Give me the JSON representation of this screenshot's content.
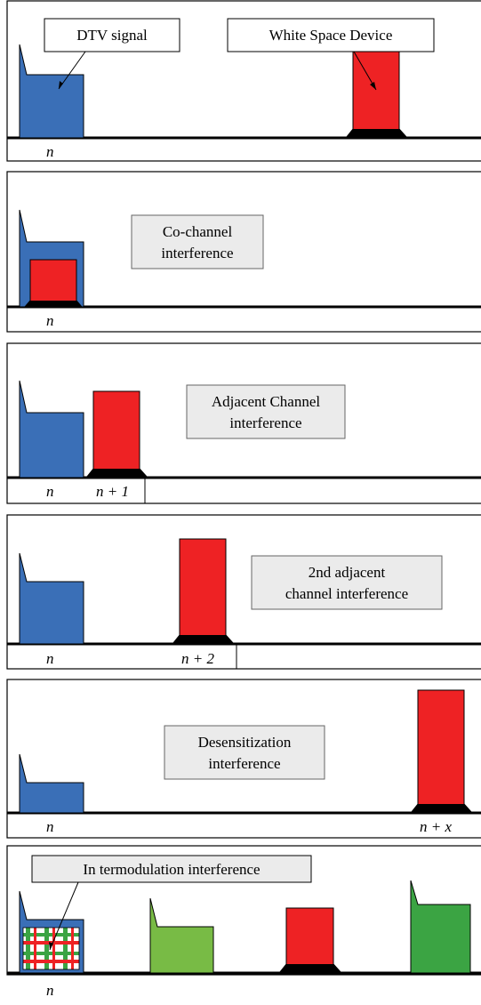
{
  "colors": {
    "dtv_blue": "#3a6fb7",
    "wsd_red": "#ee2224",
    "green_light": "#78bb45",
    "green_dark": "#3ba443",
    "callout_fill": "#ebebeb"
  },
  "panels": [
    {
      "callouts": [
        "DTV signal",
        "White Space Device"
      ],
      "indices": [
        "n"
      ]
    },
    {
      "label_lines": [
        "Co-channel",
        "interference"
      ],
      "indices": [
        "n"
      ]
    },
    {
      "label_lines": [
        "Adjacent Channel",
        "interference"
      ],
      "indices": [
        "n",
        "n + 1"
      ]
    },
    {
      "label_lines": [
        "2nd adjacent",
        "channel interference"
      ],
      "indices": [
        "n",
        "n + 2"
      ]
    },
    {
      "label_lines": [
        "Desensitization",
        "interference"
      ],
      "indices": [
        "n",
        "n + x"
      ]
    },
    {
      "callouts": [
        "In termodulation interference"
      ],
      "indices": [
        "n"
      ]
    }
  ]
}
